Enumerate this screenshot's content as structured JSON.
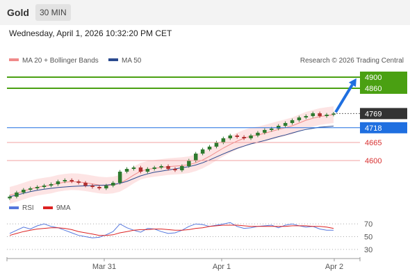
{
  "header": {
    "asset": "Gold",
    "timeframe": "30 MIN"
  },
  "timestamp": "Wednesday, April 1, 2026 10:32:20 PM CET",
  "legend": {
    "bollinger": "MA 20 + Bollinger Bands",
    "ma50": "MA 50",
    "credit": "Research © 2026 Trading Central",
    "rsi": "RSI",
    "rsi_ma": "9MA"
  },
  "colors": {
    "bollinger": "#f08a8a",
    "ma50": "#2b4a8f",
    "target": "#4aa012",
    "pivot": "#1f6fe0",
    "support": "#f0a0a0",
    "price": "#333333",
    "candle_up": "#2f7a2f",
    "candle_down": "#b03030",
    "rsi": "#5577dd",
    "rsi_ma": "#dd2222"
  },
  "chart_data": [
    {
      "type": "line",
      "title": "Gold 30 MIN",
      "x_ticks": [
        "Mar 31",
        "Apr 1",
        "Apr 2"
      ],
      "levels": [
        {
          "label": "4900",
          "value": 4900,
          "kind": "target"
        },
        {
          "label": "4860",
          "value": 4860,
          "kind": "target"
        },
        {
          "label": "4769",
          "value": 4769,
          "kind": "last"
        },
        {
          "label": "4718",
          "value": 4718,
          "kind": "pivot"
        },
        {
          "label": "4665",
          "value": 4665,
          "kind": "support"
        },
        {
          "label": "4600",
          "value": 4600,
          "kind": "support"
        }
      ],
      "ylim": [
        4465,
        4935
      ],
      "series": [
        {
          "name": "MA 20 + Bollinger Bands",
          "values": [
            4475,
            4482,
            4490,
            4498,
            4504,
            4508,
            4512,
            4518,
            4522,
            4524,
            4523,
            4520,
            4516,
            4512,
            4510,
            4512,
            4518,
            4532,
            4548,
            4562,
            4568,
            4572,
            4575,
            4578,
            4580,
            4582,
            4585,
            4592,
            4602,
            4615,
            4630,
            4645,
            4658,
            4670,
            4680,
            4688,
            4692,
            4698,
            4705,
            4712,
            4718,
            4725,
            4735,
            4745,
            4752,
            4758,
            4762,
            4765
          ]
        },
        {
          "name": "MA 50",
          "values": [
            4470,
            4476,
            4482,
            4488,
            4493,
            4497,
            4500,
            4503,
            4505,
            4507,
            4508,
            4509,
            4510,
            4511,
            4512,
            4514,
            4518,
            4525,
            4535,
            4545,
            4552,
            4558,
            4562,
            4566,
            4570,
            4574,
            4578,
            4584,
            4592,
            4602,
            4613,
            4624,
            4634,
            4644,
            4652,
            4660,
            4666,
            4672,
            4679,
            4686,
            4692,
            4699,
            4706,
            4712,
            4716,
            4720,
            4722,
            4724
          ]
        }
      ],
      "closes": [
        4470,
        4485,
        4495,
        4500,
        4505,
        4510,
        4515,
        4525,
        4530,
        4525,
        4520,
        4510,
        4505,
        4500,
        4510,
        4520,
        4560,
        4570,
        4575,
        4560,
        4570,
        4575,
        4580,
        4570,
        4565,
        4580,
        4600,
        4625,
        4640,
        4650,
        4665,
        4680,
        4690,
        4685,
        4680,
        4690,
        4700,
        4710,
        4715,
        4725,
        4735,
        4745,
        4755,
        4760,
        4770,
        4760,
        4765,
        4769
      ]
    },
    {
      "type": "line",
      "title": "RSI",
      "ylim": [
        20,
        80
      ],
      "y_ticks": [
        "70",
        "50",
        "30"
      ],
      "series": [
        {
          "name": "RSI",
          "values": [
            55,
            60,
            65,
            62,
            67,
            70,
            66,
            64,
            60,
            56,
            52,
            50,
            48,
            49,
            53,
            58,
            70,
            64,
            60,
            57,
            63,
            62,
            58,
            55,
            56,
            60,
            66,
            70,
            69,
            66,
            68,
            70,
            72,
            66,
            63,
            64,
            66,
            67,
            68,
            64,
            68,
            70,
            67,
            65,
            66,
            62,
            60,
            60
          ]
        },
        {
          "name": "9MA",
          "values": [
            52,
            55,
            58,
            60,
            62,
            63,
            64,
            64,
            63,
            61,
            58,
            56,
            54,
            52,
            52,
            53,
            56,
            58,
            60,
            61,
            61,
            62,
            62,
            61,
            60,
            60,
            61,
            63,
            64,
            66,
            67,
            68,
            68,
            68,
            67,
            66,
            66,
            66,
            66,
            66,
            66,
            67,
            67,
            67,
            66,
            66,
            65,
            63
          ]
        }
      ]
    }
  ]
}
